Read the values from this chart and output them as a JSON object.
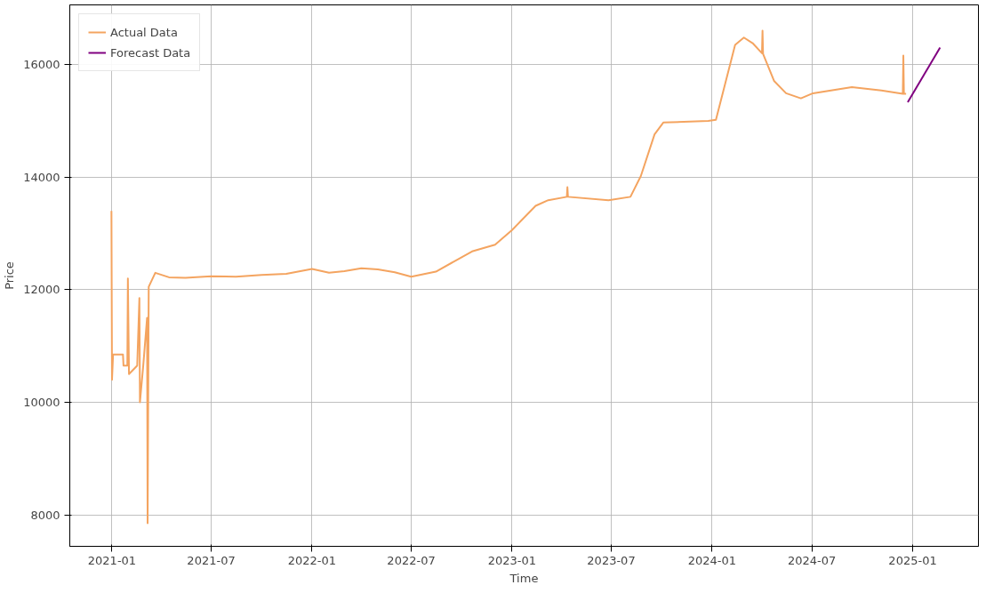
{
  "chart_data": {
    "type": "line",
    "xlabel": "Time",
    "ylabel": "Price",
    "xlim": [
      "2020-10-16",
      "2025-05-01"
    ],
    "ylim": [
      7440,
      17060
    ],
    "xticks": [
      "2021-01",
      "2021-07",
      "2022-01",
      "2022-07",
      "2023-01",
      "2023-07",
      "2024-01",
      "2024-07",
      "2025-01"
    ],
    "yticks": [
      8000,
      10000,
      12000,
      14000,
      16000
    ],
    "grid": true,
    "legend": "top left",
    "line_style": "solid",
    "marker": "none",
    "series": [
      {
        "name": "Actual Data",
        "color": "#f4a460",
        "x": [
          "2020-12-31",
          "2021-01-01",
          "2021-01-03",
          "2021-01-21",
          "2021-01-22",
          "2021-01-29",
          "2021-01-30",
          "2021-02-01",
          "2021-02-16",
          "2021-02-20",
          "2021-02-21",
          "2021-02-27",
          "2021-03-06",
          "2021-03-07",
          "2021-03-09",
          "2021-03-21",
          "2021-04-15",
          "2021-05-15",
          "2021-07-01",
          "2021-08-15",
          "2021-10-01",
          "2021-11-15",
          "2022-01-01",
          "2022-02-01",
          "2022-03-01",
          "2022-04-01",
          "2022-05-01",
          "2022-06-01",
          "2022-07-01",
          "2022-08-15",
          "2022-10-20",
          "2022-12-01",
          "2023-01-01",
          "2023-02-13",
          "2023-03-08",
          "2023-04-11",
          "2023-04-12",
          "2023-04-13",
          "2023-06-26",
          "2023-08-05",
          "2023-08-24",
          "2023-09-18",
          "2023-10-04",
          "2023-12-25",
          "2024-01-08",
          "2024-02-12",
          "2024-02-28",
          "2024-03-15",
          "2024-04-01",
          "2024-04-02",
          "2024-04-03",
          "2024-04-23",
          "2024-05-15",
          "2024-06-11",
          "2024-07-03",
          "2024-09-12",
          "2024-11-05",
          "2024-12-14",
          "2024-12-15",
          "2024-12-16",
          "2024-12-20"
        ],
        "values": [
          13400,
          10400,
          10850,
          10850,
          10650,
          10650,
          12200,
          10500,
          10650,
          11850,
          10000,
          10650,
          11500,
          7850,
          12050,
          12300,
          12220,
          12210,
          12240,
          12230,
          12260,
          12280,
          12370,
          12300,
          12330,
          12380,
          12360,
          12310,
          12230,
          12320,
          12680,
          12800,
          13060,
          13490,
          13590,
          13650,
          13820,
          13650,
          13590,
          13650,
          14020,
          14760,
          14970,
          15000,
          15020,
          16350,
          16480,
          16380,
          16200,
          16600,
          16190,
          15710,
          15490,
          15400,
          15490,
          15600,
          15540,
          15480,
          16160,
          15480,
          15480
        ]
      },
      {
        "name": "Forecast Data",
        "color": "#800080",
        "x": [
          "2024-12-23",
          "2025-02-20"
        ],
        "values": [
          15330,
          16300
        ]
      }
    ]
  }
}
